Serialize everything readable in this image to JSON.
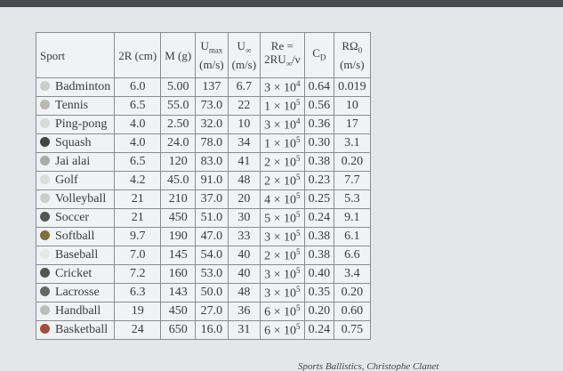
{
  "table": {
    "header": [
      {
        "main": "Sport"
      },
      {
        "main": "2R (cm)"
      },
      {
        "main": "M (g)"
      },
      {
        "main": "U",
        "sub": "max",
        "unit": "(m/s)"
      },
      {
        "main": "U",
        "sub": "∞",
        "unit": "(m/s)"
      },
      {
        "main": "Re =",
        "formula": "2RU",
        "fsub": "∞",
        "fend": "/ν"
      },
      {
        "main": "C",
        "sub": "D"
      },
      {
        "main": "RΩ",
        "sub": "0",
        "unit": "(m/s)"
      }
    ],
    "rows": [
      [
        "Badminton",
        "6.0",
        "5.00",
        "137",
        "6.7",
        {
          "base": "3 × 10",
          "exp": "4"
        },
        "0.64",
        "0.019"
      ],
      [
        "Tennis",
        "6.5",
        "55.0",
        "73.0",
        "22",
        {
          "base": "1 × 10",
          "exp": "5"
        },
        "0.56",
        "10"
      ],
      [
        "Ping-pong",
        "4.0",
        "2.50",
        "32.0",
        "10",
        {
          "base": "3 × 10",
          "exp": "4"
        },
        "0.36",
        "17"
      ],
      [
        "Squash",
        "4.0",
        "24.0",
        "78.0",
        "34",
        {
          "base": "1 × 10",
          "exp": "5"
        },
        "0.30",
        "3.1"
      ],
      [
        "Jai alai",
        "6.5",
        "120",
        "83.0",
        "41",
        {
          "base": "2 × 10",
          "exp": "5"
        },
        "0.38",
        "0.20"
      ],
      [
        "Golf",
        "4.2",
        "45.0",
        "91.0",
        "48",
        {
          "base": "2 × 10",
          "exp": "5"
        },
        "0.23",
        "7.7"
      ],
      [
        "Volleyball",
        "21",
        "210",
        "37.0",
        "20",
        {
          "base": "4 × 10",
          "exp": "5"
        },
        "0.25",
        "5.3"
      ],
      [
        "Soccer",
        "21",
        "450",
        "51.0",
        "30",
        {
          "base": "5 × 10",
          "exp": "5"
        },
        "0.24",
        "9.1"
      ],
      [
        "Softball",
        "9.7",
        "190",
        "47.0",
        "33",
        {
          "base": "3 × 10",
          "exp": "5"
        },
        "0.38",
        "6.1"
      ],
      [
        "Baseball",
        "7.0",
        "145",
        "54.0",
        "40",
        {
          "base": "2 × 10",
          "exp": "5"
        },
        "0.38",
        "6.6"
      ],
      [
        "Cricket",
        "7.2",
        "160",
        "53.0",
        "40",
        {
          "base": "3 × 10",
          "exp": "5"
        },
        "0.40",
        "3.4"
      ],
      [
        "Lacrosse",
        "6.3",
        "143",
        "50.0",
        "48",
        {
          "base": "3 × 10",
          "exp": "5"
        },
        "0.35",
        "0.20"
      ],
      [
        "Handball",
        "19",
        "450",
        "27.0",
        "36",
        {
          "base": "6 × 10",
          "exp": "5"
        },
        "0.20",
        "0.60"
      ],
      [
        "Basketball",
        "24",
        "650",
        "16.0",
        "31",
        {
          "base": "6 × 10",
          "exp": "5"
        },
        "0.24",
        "0.75"
      ]
    ]
  },
  "caption": "Sports Ballistics, Christophe Clanet"
}
